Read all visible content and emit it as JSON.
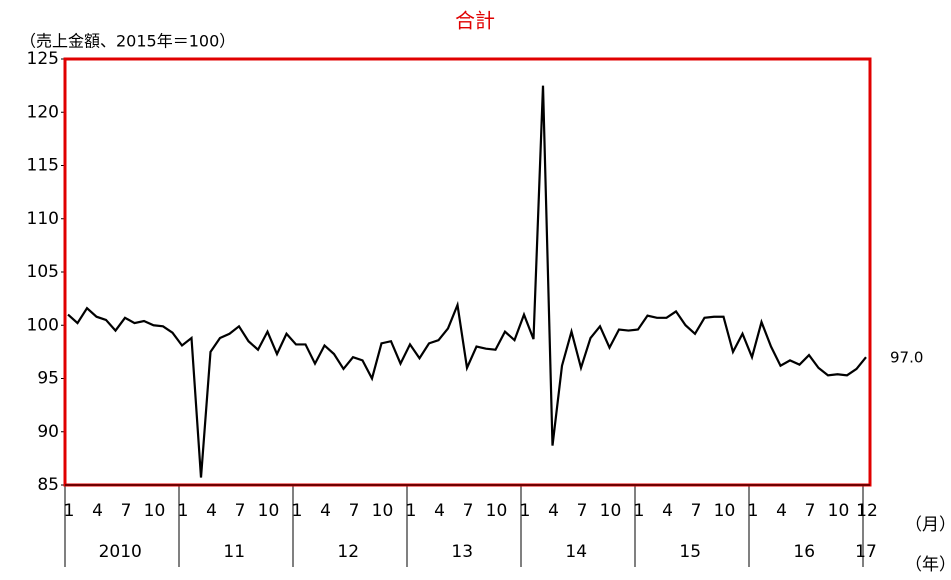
{
  "chart_data": {
    "type": "line",
    "title": "合計",
    "y_label": "（売上金額、2015年＝100）",
    "x_label": "（月）",
    "year_axis_label": "（年）",
    "categories": [
      "1",
      null,
      null,
      "4",
      null,
      null,
      "7",
      null,
      null,
      "10",
      null,
      null,
      "1",
      null,
      null,
      "4",
      null,
      null,
      "7",
      null,
      null,
      "10",
      null,
      null,
      "1",
      null,
      null,
      "4",
      null,
      null,
      "7",
      null,
      null,
      "10",
      null,
      null,
      "1",
      null,
      null,
      "4",
      null,
      null,
      "7",
      null,
      null,
      "10",
      null,
      null,
      "1",
      null,
      null,
      "4",
      null,
      null,
      "7",
      null,
      null,
      "10",
      null,
      null,
      "1",
      null,
      null,
      "4",
      null,
      null,
      "7",
      null,
      null,
      "10",
      null,
      null,
      "1",
      null,
      null,
      "4",
      null,
      null,
      "7",
      null,
      null,
      "10",
      null,
      null,
      "12"
    ],
    "years": [
      "2010",
      "11",
      "12",
      "13",
      "14",
      "15",
      "16",
      "17"
    ],
    "values": [
      101.0,
      100.2,
      101.6,
      100.8,
      100.5,
      99.5,
      100.7,
      100.2,
      100.4,
      100.0,
      99.9,
      99.3,
      98.1,
      98.8,
      85.7,
      97.5,
      98.8,
      99.2,
      99.9,
      98.5,
      97.7,
      99.4,
      97.3,
      99.2,
      98.2,
      98.2,
      96.4,
      98.1,
      97.3,
      95.9,
      97.0,
      96.7,
      95.0,
      98.3,
      98.5,
      96.4,
      98.2,
      96.9,
      98.3,
      98.6,
      99.7,
      101.9,
      96.0,
      98.0,
      97.8,
      97.7,
      99.4,
      98.6,
      101.0,
      98.7,
      122.5,
      88.7,
      96.2,
      99.4,
      96.0,
      98.8,
      99.9,
      97.9,
      99.6,
      99.5,
      99.6,
      100.9,
      100.7,
      100.7,
      101.3,
      100.0,
      99.2,
      100.7,
      100.8,
      100.8,
      97.5,
      99.2,
      97.0,
      100.3,
      98.0,
      96.2,
      96.7,
      96.3,
      97.2,
      96.0,
      95.3,
      95.4,
      95.3,
      95.9,
      97.0
    ],
    "value_labels": [
      null,
      null,
      null,
      null,
      null,
      null,
      null,
      null,
      null,
      null,
      null,
      null,
      null,
      null,
      null,
      null,
      null,
      null,
      null,
      null,
      null,
      null,
      null,
      null,
      null,
      null,
      null,
      null,
      null,
      null,
      null,
      null,
      null,
      null,
      null,
      null,
      null,
      null,
      null,
      null,
      null,
      null,
      null,
      null,
      null,
      null,
      null,
      null,
      null,
      null,
      null,
      null,
      null,
      null,
      null,
      null,
      null,
      null,
      null,
      null,
      null,
      null,
      null,
      null,
      null,
      null,
      null,
      null,
      null,
      null,
      null,
      null,
      null,
      null,
      null,
      null,
      null,
      null,
      null,
      null,
      null,
      null,
      null,
      null,
      "97.0"
    ],
    "color": "#000000",
    "frame_color": "#e00000",
    "ylim": [
      85,
      125
    ],
    "yticks": [
      85,
      90,
      95,
      100,
      105,
      110,
      115,
      120,
      125
    ],
    "grid": false
  }
}
